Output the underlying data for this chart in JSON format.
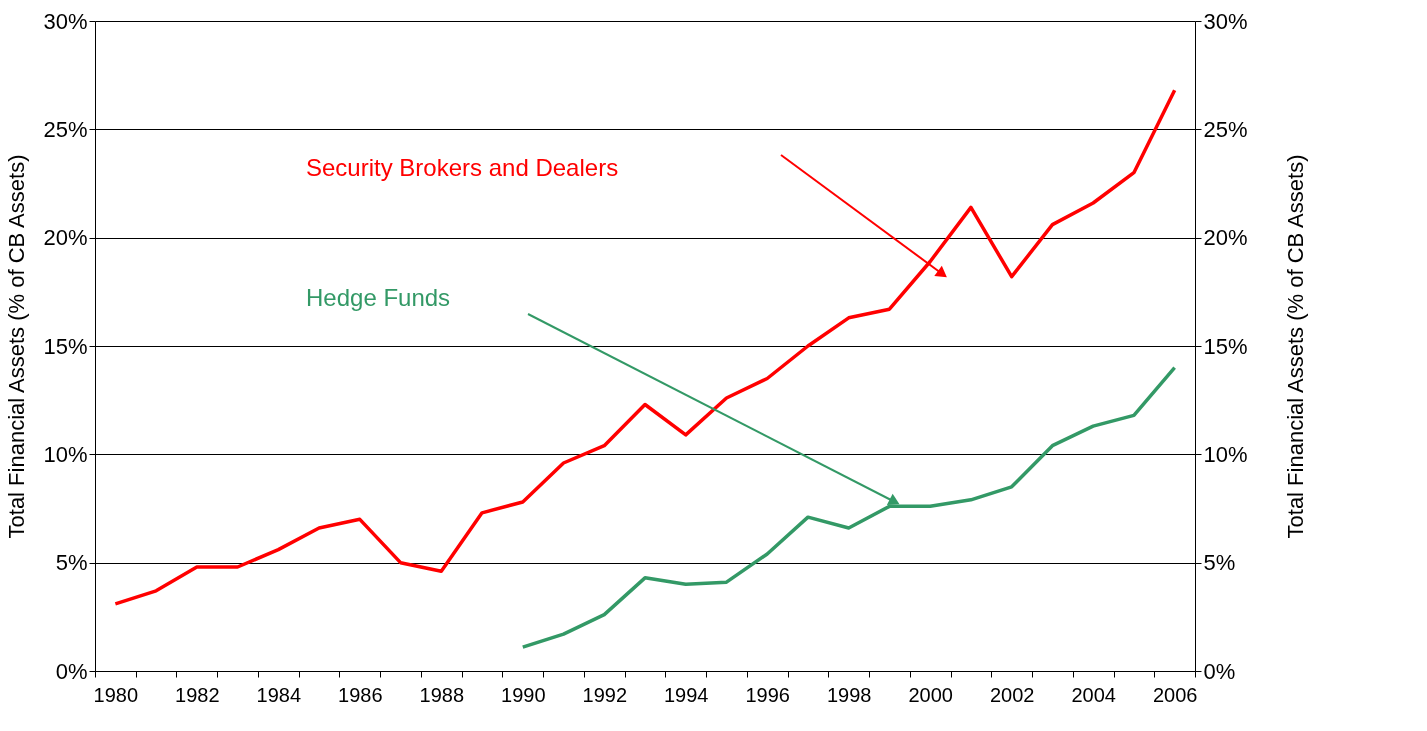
{
  "chart_data": {
    "type": "line",
    "categories": [
      "1980",
      null,
      "1982",
      null,
      "1984",
      null,
      "1986",
      null,
      "1988",
      null,
      "1990",
      null,
      "1992",
      null,
      "1994",
      null,
      "1996",
      null,
      "1998",
      null,
      "2000",
      null,
      "2002",
      null,
      "2004",
      null,
      "2006"
    ],
    "series": [
      {
        "name": "Security Brokers and Dealers",
        "color": "#ff0000",
        "values": [
          3.1,
          3.7,
          4.8,
          4.8,
          5.6,
          6.6,
          7.0,
          5.0,
          4.6,
          7.3,
          7.8,
          9.6,
          10.4,
          12.3,
          10.9,
          12.6,
          13.5,
          15.0,
          16.3,
          16.7,
          18.9,
          21.4,
          18.2,
          20.6,
          21.6,
          23.0,
          26.8
        ]
      },
      {
        "name": "Hedge Funds",
        "color": "#339966",
        "values": [
          null,
          null,
          null,
          null,
          null,
          null,
          null,
          null,
          null,
          null,
          1.1,
          1.7,
          2.6,
          4.3,
          4.0,
          4.1,
          5.4,
          7.1,
          6.6,
          7.6,
          7.6,
          7.9,
          8.5,
          10.4,
          11.3,
          11.8,
          14.0
        ]
      }
    ],
    "ylabel": "Total Financial Assets (% of CB Assets)",
    "y2label": "Total Financial Assets (% of CB Assets)",
    "ylim": [
      0,
      30
    ],
    "yticks": [
      {
        "value": 0,
        "label": "0%"
      },
      {
        "value": 5,
        "label": "5%"
      },
      {
        "value": 10,
        "label": "10%"
      },
      {
        "value": 15,
        "label": "15%"
      },
      {
        "value": 20,
        "label": "20%"
      },
      {
        "value": 25,
        "label": "25%"
      },
      {
        "value": 30,
        "label": "30%"
      }
    ],
    "y2lim": [
      0,
      30
    ],
    "y2ticks": [
      {
        "value": 0,
        "label": "0%"
      },
      {
        "value": 5,
        "label": "5%"
      },
      {
        "value": 10,
        "label": "10%"
      },
      {
        "value": 15,
        "label": "15%"
      },
      {
        "value": 20,
        "label": "20%"
      },
      {
        "value": 25,
        "label": "25%"
      },
      {
        "value": 30,
        "label": "30%"
      }
    ],
    "grid": "y",
    "marker": "none",
    "line_style": "solid"
  }
}
